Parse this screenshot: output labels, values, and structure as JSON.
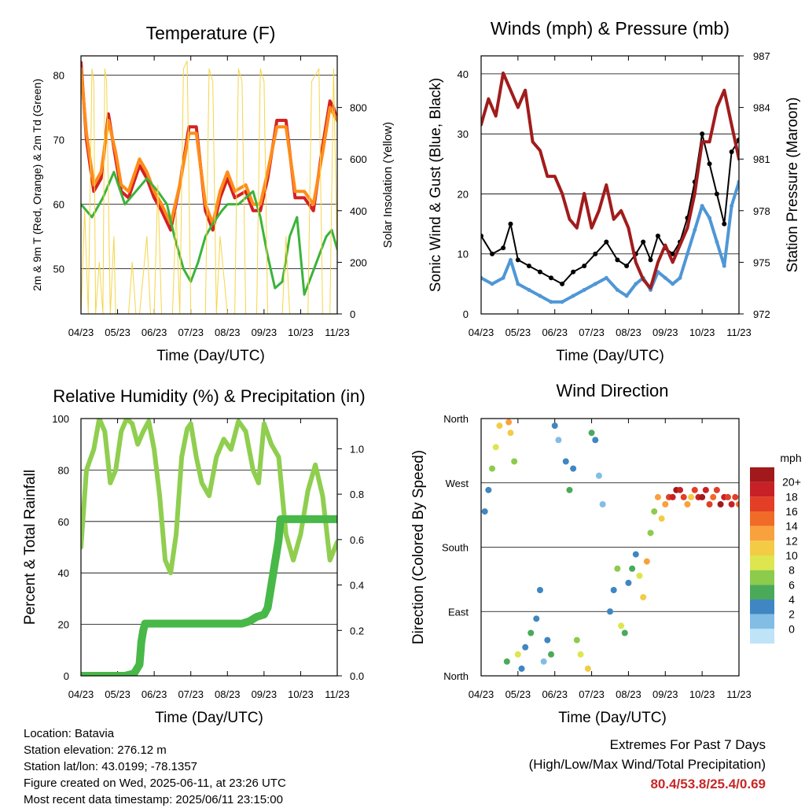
{
  "info": {
    "location": "Location: Batavia",
    "elevation": "Station elevation: 276.12 m",
    "latlon": "Station lat/lon: 43.0199; -78.1357",
    "created": "Figure created on Wed, 2025-06-11, at 23:26 UTC",
    "recent": "Most recent data timestamp: 2025/06/11 23:15:00"
  },
  "extremes": {
    "title": "Extremes For Past 7 Days",
    "subtitle": "(High/Low/Max Wind/Total Precipitation)",
    "values": "80.4/53.8/25.4/0.69"
  },
  "chart_data": [
    {
      "type": "line",
      "title": "Temperature (F)",
      "xlabel": "Time (Day/UTC)",
      "ylabel": "2m & 9m T (Red, Orange) & 2m Td (Green)",
      "ylabel_right": "Solar Insolation (Yellow)",
      "x_ticks": [
        "04/23",
        "05/23",
        "06/23",
        "07/23",
        "08/23",
        "09/23",
        "10/23",
        "11/23"
      ],
      "xlim": [
        0,
        7
      ],
      "ylim": [
        43,
        83
      ],
      "y_ticks": [
        50,
        60,
        70,
        80
      ],
      "ylim_right": [
        0,
        1000
      ],
      "y_ticks_right": [
        0,
        200,
        400,
        600,
        800
      ],
      "grid": "horizontal",
      "series": [
        {
          "color": "#d62020",
          "x": [
            0,
            0.15,
            0.35,
            0.55,
            0.75,
            0.95,
            1.1,
            1.3,
            1.6,
            1.8,
            2.0,
            2.2,
            2.45,
            2.7,
            2.95,
            3.15,
            3.4,
            3.6,
            3.8,
            4.0,
            4.2,
            4.5,
            4.7,
            4.9,
            5.1,
            5.35,
            5.6,
            5.85,
            6.1,
            6.35,
            6.6,
            6.8,
            6.9,
            7.0
          ],
          "y": [
            82,
            70,
            62,
            64,
            74,
            67,
            62,
            61,
            66,
            64,
            61,
            59,
            56,
            63,
            72,
            72,
            59,
            56,
            61,
            64,
            61,
            62,
            59,
            59,
            64,
            73,
            73,
            61,
            61,
            59,
            69,
            76,
            75,
            73
          ]
        },
        {
          "color": "#ff8c1a",
          "x": [
            0,
            0.15,
            0.35,
            0.55,
            0.75,
            0.95,
            1.1,
            1.3,
            1.6,
            1.8,
            2.0,
            2.2,
            2.45,
            2.7,
            2.95,
            3.15,
            3.4,
            3.6,
            3.8,
            4.0,
            4.2,
            4.5,
            4.7,
            4.9,
            5.1,
            5.35,
            5.6,
            5.85,
            6.1,
            6.35,
            6.6,
            6.8,
            6.9,
            7.0
          ],
          "y": [
            81,
            71,
            63,
            65,
            73,
            68,
            63,
            62,
            67,
            65,
            62,
            60,
            57,
            63,
            71,
            71,
            60,
            57,
            62,
            65,
            62,
            63,
            60,
            60,
            65,
            72,
            72,
            62,
            62,
            60,
            68,
            75,
            74,
            73
          ]
        },
        {
          "color": "#3bb33b",
          "x": [
            0,
            0.3,
            0.6,
            0.9,
            1.2,
            1.5,
            1.8,
            2.1,
            2.35,
            2.55,
            2.8,
            3.0,
            3.2,
            3.4,
            3.6,
            3.85,
            4.0,
            4.3,
            4.5,
            4.7,
            4.9,
            5.1,
            5.3,
            5.5,
            5.7,
            5.9,
            6.1,
            6.3,
            6.5,
            6.7,
            6.85,
            7.0
          ],
          "y": [
            60,
            58,
            61,
            65,
            60,
            62,
            64,
            62,
            60,
            55,
            50,
            48,
            51,
            55,
            57,
            59,
            60,
            60,
            61,
            62,
            58,
            52,
            47,
            48,
            55,
            58,
            46,
            49,
            52,
            55,
            56,
            53
          ]
        },
        {
          "color": "#f5d547",
          "x": [
            0,
            0.1,
            0.2,
            0.3,
            0.35,
            0.4,
            0.5,
            0.6,
            0.65,
            0.7,
            0.8,
            0.9,
            0.95,
            1.0,
            1.3,
            1.4,
            1.5,
            1.6,
            1.8,
            1.9,
            2.0,
            2.1,
            2.2,
            2.3,
            2.5,
            2.6,
            2.7,
            2.8,
            2.9,
            3.0,
            3.4,
            3.5,
            3.6,
            3.7,
            3.8,
            4.0,
            4.2,
            4.3,
            4.4,
            4.5,
            4.6,
            4.8,
            4.9,
            5.0,
            5.1,
            5.3,
            5.5,
            5.6,
            5.7,
            5.8,
            6.0,
            6.1,
            6.2,
            6.3,
            6.5,
            6.6,
            6.7,
            6.8,
            6.9,
            7.0
          ],
          "y": [
            0,
            400,
            0,
            950,
            900,
            0,
            200,
            0,
            950,
            900,
            0,
            300,
            0,
            0,
            0,
            200,
            0,
            0,
            300,
            0,
            0,
            500,
            0,
            0,
            0,
            400,
            0,
            950,
            980,
            0,
            0,
            950,
            900,
            0,
            300,
            0,
            0,
            950,
            900,
            0,
            0,
            0,
            950,
            900,
            0,
            0,
            0,
            300,
            0,
            0,
            0,
            0,
            0,
            900,
            950,
            0,
            0,
            0,
            950,
            200
          ]
        }
      ]
    },
    {
      "type": "scatter",
      "title": "Winds (mph) & Pressure (mb)",
      "xlabel": "Time (Day/UTC)",
      "ylabel": "Sonic Wind & Gust (Blue, Black)",
      "ylabel_right": "Station Pressure (Maroon)",
      "x_ticks": [
        "04/23",
        "05/23",
        "06/23",
        "07/23",
        "08/23",
        "09/23",
        "10/23",
        "11/23"
      ],
      "xlim": [
        0,
        7
      ],
      "ylim": [
        0,
        43
      ],
      "y_ticks": [
        0,
        10,
        20,
        30,
        40
      ],
      "ylim_right": [
        972,
        987
      ],
      "y_ticks_right": [
        972,
        975,
        978,
        981,
        984,
        987
      ],
      "grid": "horizontal",
      "series": [
        {
          "color": "#000000",
          "x": [
            0,
            0.3,
            0.6,
            0.8,
            1.0,
            1.3,
            1.6,
            1.9,
            2.2,
            2.5,
            2.8,
            3.1,
            3.4,
            3.7,
            3.95,
            4.2,
            4.4,
            4.6,
            4.8,
            5.0,
            5.2,
            5.4,
            5.6,
            5.8,
            6.0,
            6.2,
            6.4,
            6.6,
            6.8,
            7.0
          ],
          "y": [
            13,
            10,
            11,
            15,
            9,
            8,
            7,
            6,
            5,
            7,
            8,
            10,
            12,
            9,
            8,
            10,
            12,
            9,
            13,
            11,
            10,
            12,
            16,
            22,
            30,
            25,
            20,
            15,
            27,
            29
          ]
        },
        {
          "color": "#4f97d6",
          "x": [
            0,
            0.3,
            0.6,
            0.8,
            1.0,
            1.3,
            1.6,
            1.9,
            2.2,
            2.5,
            2.8,
            3.1,
            3.4,
            3.7,
            3.95,
            4.2,
            4.4,
            4.6,
            4.8,
            5.0,
            5.2,
            5.4,
            5.6,
            5.8,
            6.0,
            6.2,
            6.4,
            6.6,
            6.8,
            7.0
          ],
          "y": [
            6,
            5,
            6,
            9,
            5,
            4,
            3,
            2,
            2,
            3,
            4,
            5,
            6,
            4,
            3,
            5,
            6,
            4,
            7,
            6,
            5,
            6,
            10,
            14,
            18,
            16,
            12,
            8,
            18,
            22
          ]
        },
        {
          "color": "#a11c1c",
          "x": [
            0,
            0.2,
            0.4,
            0.6,
            0.8,
            1.0,
            1.2,
            1.4,
            1.6,
            1.8,
            2.0,
            2.2,
            2.4,
            2.6,
            2.8,
            3.0,
            3.2,
            3.4,
            3.6,
            3.8,
            4.0,
            4.2,
            4.4,
            4.6,
            4.8,
            5.0,
            5.2,
            5.4,
            5.6,
            5.8,
            6.0,
            6.2,
            6.4,
            6.6,
            6.8,
            7.0
          ],
          "y": [
            983,
            984.5,
            983.5,
            986,
            985,
            984,
            985,
            982,
            981.5,
            980,
            980,
            979,
            977.5,
            977,
            979,
            977,
            978,
            979.5,
            977.5,
            978,
            977,
            975,
            974,
            973.5,
            975,
            976,
            975,
            976,
            977,
            979,
            982,
            982,
            984,
            985,
            983,
            981
          ]
        }
      ]
    },
    {
      "type": "line",
      "title": "Relative Humidity (%) & Precipitation (in)",
      "xlabel": "Time (Day/UTC)",
      "ylabel": "Percent & Total Rainfall",
      "x_ticks": [
        "04/23",
        "05/23",
        "06/23",
        "07/23",
        "08/23",
        "09/23",
        "10/23",
        "11/23"
      ],
      "xlim": [
        0,
        7
      ],
      "ylim": [
        0,
        100
      ],
      "y_ticks": [
        0,
        20,
        40,
        60,
        80,
        100
      ],
      "ylim_right": [
        0,
        1.133
      ],
      "y_ticks_right": [
        0.0,
        0.2,
        0.4,
        0.6,
        0.8,
        1.0
      ],
      "grid": "horizontal",
      "series": [
        {
          "color": "#8fce4f",
          "x": [
            0,
            0.15,
            0.35,
            0.5,
            0.65,
            0.8,
            0.95,
            1.1,
            1.25,
            1.4,
            1.55,
            1.7,
            1.85,
            2.0,
            2.15,
            2.3,
            2.45,
            2.6,
            2.75,
            2.9,
            3.0,
            3.15,
            3.3,
            3.5,
            3.7,
            3.9,
            4.1,
            4.3,
            4.5,
            4.7,
            4.85,
            5.0,
            5.2,
            5.4,
            5.6,
            5.8,
            6.0,
            6.2,
            6.4,
            6.6,
            6.8,
            7.0
          ],
          "y": [
            50,
            80,
            88,
            100,
            95,
            75,
            80,
            95,
            100,
            98,
            90,
            95,
            99,
            88,
            70,
            45,
            40,
            55,
            85,
            96,
            98,
            85,
            75,
            70,
            85,
            92,
            88,
            99,
            95,
            80,
            75,
            98,
            90,
            85,
            55,
            45,
            55,
            72,
            82,
            70,
            45,
            52
          ]
        },
        {
          "color": "#48b848",
          "x": [
            0,
            0.3,
            0.6,
            0.9,
            1.2,
            1.45,
            1.6,
            1.65,
            1.7,
            1.75,
            1.8,
            2.1,
            2.5,
            2.9,
            3.3,
            3.7,
            4.1,
            4.4,
            4.6,
            4.8,
            5.0,
            5.1,
            5.2,
            5.3,
            5.35,
            5.4,
            5.45,
            5.6,
            5.9,
            6.2,
            6.5,
            6.8,
            7.0
          ],
          "y": [
            0,
            0,
            0,
            0,
            0,
            0.01,
            0.05,
            0.15,
            0.2,
            0.23,
            0.23,
            0.23,
            0.23,
            0.23,
            0.23,
            0.23,
            0.23,
            0.23,
            0.24,
            0.26,
            0.27,
            0.3,
            0.4,
            0.5,
            0.55,
            0.6,
            0.69,
            0.69,
            0.69,
            0.69,
            0.69,
            0.69,
            0.69
          ]
        }
      ]
    },
    {
      "type": "scatter",
      "title": "Wind Direction",
      "xlabel": "Time (Day/UTC)",
      "ylabel": "Direction (Colored By Speed)",
      "x_ticks": [
        "04/23",
        "05/23",
        "06/23",
        "07/23",
        "08/23",
        "09/23",
        "10/23",
        "11/23"
      ],
      "xlim": [
        0,
        7
      ],
      "ylim": [
        0,
        360
      ],
      "y_ticks": [
        "North",
        "East",
        "South",
        "West",
        "North"
      ],
      "grid": "horizontal",
      "legend": "right",
      "colorbar_label": "mph",
      "colorbar_ticks": [
        "20+",
        "18",
        "16",
        "14",
        "12",
        "10",
        "8",
        "6",
        "4",
        "2",
        "0"
      ],
      "colorbar_colors": [
        "#a1191b",
        "#c72127",
        "#e23f26",
        "#f06b28",
        "#f9a13d",
        "#f4cb45",
        "#dde64e",
        "#8ccb4b",
        "#4aaa5a",
        "#3f86c2",
        "#82bde6",
        "#bfe3f7"
      ],
      "x": [
        0.1,
        0.2,
        0.3,
        0.4,
        0.5,
        0.7,
        0.75,
        0.8,
        0.9,
        1.0,
        1.1,
        1.2,
        1.35,
        1.5,
        1.6,
        1.7,
        1.8,
        1.9,
        2.0,
        2.1,
        2.3,
        2.4,
        2.5,
        2.6,
        2.7,
        2.9,
        3.0,
        3.1,
        3.2,
        3.3,
        3.5,
        3.6,
        3.7,
        3.8,
        3.9,
        4.0,
        4.1,
        4.2,
        4.3,
        4.4,
        4.5,
        4.6,
        4.7,
        4.8,
        4.9,
        5.0,
        5.1,
        5.2,
        5.3,
        5.4,
        5.5,
        5.6,
        5.7,
        5.8,
        5.9,
        6.0,
        6.1,
        6.2,
        6.3,
        6.4,
        6.5,
        6.6,
        6.7,
        6.8,
        6.9,
        7.0
      ],
      "direction": [
        230,
        260,
        290,
        320,
        350,
        20,
        355,
        340,
        300,
        30,
        10,
        40,
        60,
        80,
        120,
        20,
        50,
        30,
        350,
        330,
        300,
        260,
        290,
        50,
        30,
        10,
        340,
        330,
        280,
        240,
        90,
        120,
        150,
        70,
        60,
        130,
        150,
        170,
        140,
        110,
        160,
        200,
        230,
        250,
        220,
        240,
        250,
        250,
        260,
        260,
        250,
        240,
        250,
        260,
        250,
        250,
        260,
        240,
        250,
        260,
        240,
        250,
        250,
        240,
        250,
        240
      ],
      "speed": [
        4,
        5,
        8,
        10,
        13,
        6,
        15,
        12,
        9,
        10,
        4,
        5,
        7,
        4,
        5,
        3,
        4,
        6,
        4,
        3,
        5,
        7,
        4,
        8,
        10,
        12,
        6,
        4,
        3,
        2,
        5,
        4,
        8,
        11,
        7,
        5,
        6,
        5,
        10,
        12,
        14,
        9,
        8,
        15,
        12,
        14,
        18,
        20,
        22,
        20,
        18,
        14,
        12,
        18,
        20,
        22,
        20,
        18,
        16,
        18,
        22,
        20,
        18,
        20,
        18,
        16
      ]
    }
  ]
}
